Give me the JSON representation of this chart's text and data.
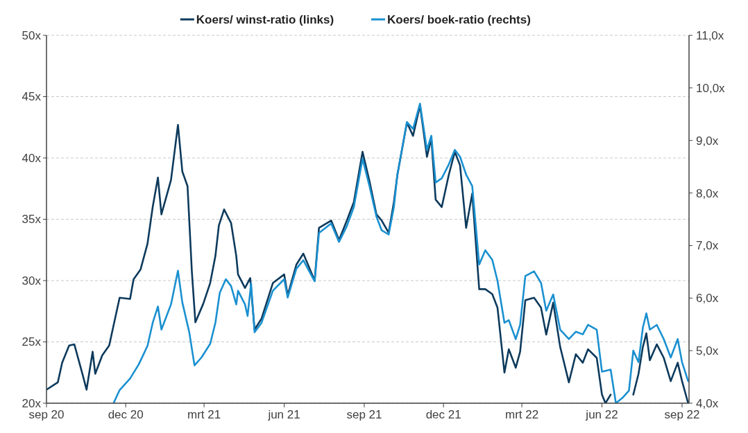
{
  "chart_data": {
    "type": "line",
    "xlim": [
      "2020-09-01",
      "2022-09-09"
    ],
    "xticks": [
      {
        "value": "2020-09-01",
        "label": "sep 20"
      },
      {
        "value": "2020-12-01",
        "label": "dec 20"
      },
      {
        "value": "2021-03-01",
        "label": "mrt 21"
      },
      {
        "value": "2021-06-01",
        "label": "jun 21"
      },
      {
        "value": "2021-09-01",
        "label": "sep 21"
      },
      {
        "value": "2021-12-01",
        "label": "dec 21"
      },
      {
        "value": "2022-03-01",
        "label": "mrt 22"
      },
      {
        "value": "2022-06-01",
        "label": "jun 22"
      },
      {
        "value": "2022-09-01",
        "label": "sep 22"
      }
    ],
    "ylim": [
      20,
      50
    ],
    "yticks": [
      {
        "value": 20,
        "label": "20x"
      },
      {
        "value": 25,
        "label": "25x"
      },
      {
        "value": 30,
        "label": "30x"
      },
      {
        "value": 35,
        "label": "35x"
      },
      {
        "value": 40,
        "label": "40x"
      },
      {
        "value": 45,
        "label": "45x"
      },
      {
        "value": 50,
        "label": "50x"
      }
    ],
    "y2lim": [
      4,
      11
    ],
    "y2ticks": [
      {
        "value": 4,
        "label": "4,0x"
      },
      {
        "value": 5,
        "label": "5,0x"
      },
      {
        "value": 6,
        "label": "6,0x"
      },
      {
        "value": 7,
        "label": "7,0x"
      },
      {
        "value": 8,
        "label": "8,0x"
      },
      {
        "value": 9,
        "label": "9,0x"
      },
      {
        "value": 10,
        "label": "10,0x"
      },
      {
        "value": 11,
        "label": "11,0x"
      }
    ],
    "grid": "y",
    "legend": "top",
    "series": [
      {
        "name": "Koers/ winst-ratio (links)",
        "color": "#0d3a5c",
        "x": [
          "2020-09-01",
          "2020-09-14",
          "2020-09-19",
          "2020-09-27",
          "2020-10-03",
          "2020-10-13",
          "2020-10-17",
          "2020-10-24",
          "2020-10-27",
          "2020-11-04",
          "2020-11-12",
          "2020-11-20",
          "2020-11-24",
          "2020-12-06",
          "2020-12-10",
          "2020-12-18",
          "2020-12-26",
          "2021-01-01",
          "2021-01-07",
          "2021-01-11",
          "2021-01-22",
          "2021-01-30",
          "2021-02-04",
          "2021-02-10",
          "2021-02-15",
          "2021-02-19",
          "2021-02-28",
          "2021-03-08",
          "2021-03-14",
          "2021-03-18",
          "2021-03-24",
          "2021-04-01",
          "2021-04-07",
          "2021-04-09",
          "2021-04-17",
          "2021-04-23",
          "2021-04-28",
          "2021-05-06",
          "2021-05-19",
          "2021-06-01",
          "2021-06-05",
          "2021-06-15",
          "2021-06-23",
          "2021-07-06",
          "2021-07-11",
          "2021-07-25",
          "2021-08-03",
          "2021-08-12",
          "2021-08-20",
          "2021-08-30",
          "2021-09-07",
          "2021-09-15",
          "2021-09-21",
          "2021-09-29",
          "2021-10-05",
          "2021-10-09",
          "2021-10-20",
          "2021-10-27",
          "2021-11-04",
          "2021-11-12",
          "2021-11-17",
          "2021-11-22",
          "2021-11-29",
          "2021-12-07",
          "2021-12-14",
          "2021-12-20",
          "2021-12-27",
          "2022-01-03",
          "2022-01-11",
          "2022-01-18",
          "2022-01-26",
          "2022-02-01",
          "2022-02-09",
          "2022-02-14",
          "2022-02-22",
          "2022-02-27",
          "2022-03-05",
          "2022-03-15",
          "2022-03-23",
          "2022-03-29",
          "2022-04-06",
          "2022-04-14",
          "2022-04-24",
          "2022-05-02",
          "2022-05-10",
          "2022-05-16",
          "2022-05-26",
          "2022-06-01",
          "2022-06-05",
          "2022-06-11",
          "2022-06-17",
          "2022-07-07",
          "2022-07-13",
          "2022-07-18",
          "2022-07-22",
          "2022-07-26",
          "2022-08-03",
          "2022-08-11",
          "2022-08-19",
          "2022-08-27",
          "2022-09-01",
          "2022-09-08"
        ],
        "values": [
          21.1,
          21.7,
          23.3,
          24.7,
          24.8,
          22.2,
          21.1,
          24.2,
          22.4,
          23.9,
          24.7,
          27.3,
          28.6,
          28.5,
          30.1,
          30.9,
          33.0,
          36.0,
          38.4,
          35.4,
          38.2,
          42.7,
          38.9,
          37.7,
          30.7,
          26.6,
          28.1,
          29.8,
          32.0,
          34.5,
          35.8,
          34.7,
          32.0,
          30.5,
          29.4,
          30.2,
          26.0,
          26.9,
          29.8,
          30.5,
          28.8,
          31.3,
          32.2,
          30.0,
          34.3,
          34.9,
          33.3,
          34.9,
          36.4,
          40.5,
          38.1,
          35.4,
          34.9,
          33.9,
          36.4,
          38.6,
          42.9,
          41.8,
          44.3,
          40.1,
          41.6,
          36.6,
          36.0,
          38.6,
          40.5,
          39.4,
          34.3,
          37.1,
          29.3,
          29.3,
          28.9,
          27.8,
          22.5,
          24.4,
          22.9,
          24.2,
          28.4,
          28.6,
          27.8,
          25.6,
          28.2,
          24.6,
          21.7,
          24.0,
          23.3,
          24.4,
          23.7,
          20.7,
          20.0,
          20.7,
          null,
          20.7,
          22.4,
          24.6,
          25.7,
          23.5,
          24.8,
          23.7,
          21.8,
          23.3,
          21.8,
          20.0
        ]
      },
      {
        "name": "Koers/ boek-ratio (rechts)",
        "color": "#1a90d0",
        "axis": "y2",
        "x": [
          "2020-11-17",
          "2020-11-24",
          "2020-12-06",
          "2020-12-16",
          "2020-12-26",
          "2021-01-01",
          "2021-01-07",
          "2021-01-11",
          "2021-01-22",
          "2021-01-30",
          "2021-02-04",
          "2021-02-12",
          "2021-02-18",
          "2021-02-26",
          "2021-03-08",
          "2021-03-14",
          "2021-03-19",
          "2021-03-26",
          "2021-04-01",
          "2021-04-07",
          "2021-04-09",
          "2021-04-17",
          "2021-04-20",
          "2021-04-24",
          "2021-04-28",
          "2021-05-06",
          "2021-05-19",
          "2021-06-01",
          "2021-06-05",
          "2021-06-15",
          "2021-06-23",
          "2021-07-06",
          "2021-07-11",
          "2021-07-25",
          "2021-08-03",
          "2021-08-12",
          "2021-08-20",
          "2021-08-30",
          "2021-09-07",
          "2021-09-15",
          "2021-09-21",
          "2021-09-29",
          "2021-10-05",
          "2021-10-09",
          "2021-10-20",
          "2021-10-27",
          "2021-11-04",
          "2021-11-12",
          "2021-11-17",
          "2021-11-22",
          "2021-11-29",
          "2021-12-07",
          "2021-12-14",
          "2021-12-20",
          "2021-12-27",
          "2022-01-03",
          "2022-01-11",
          "2022-01-18",
          "2022-01-26",
          "2022-02-01",
          "2022-02-09",
          "2022-02-14",
          "2022-02-22",
          "2022-02-27",
          "2022-03-05",
          "2022-03-15",
          "2022-03-23",
          "2022-03-29",
          "2022-04-06",
          "2022-04-14",
          "2022-04-24",
          "2022-05-02",
          "2022-05-10",
          "2022-05-16",
          "2022-05-26",
          "2022-06-01",
          "2022-06-11",
          "2022-06-17",
          "2022-06-25",
          "2022-07-02",
          "2022-07-07",
          "2022-07-13",
          "2022-07-18",
          "2022-07-22",
          "2022-07-26",
          "2022-08-03",
          "2022-08-11",
          "2022-08-19",
          "2022-08-27",
          "2022-09-01",
          "2022-09-08"
        ],
        "values": [
          4.0,
          4.25,
          4.47,
          4.74,
          5.09,
          5.53,
          5.84,
          5.4,
          5.88,
          6.52,
          5.92,
          5.35,
          4.72,
          4.87,
          5.13,
          5.53,
          6.1,
          6.36,
          6.23,
          5.88,
          6.14,
          5.88,
          5.66,
          6.28,
          5.35,
          5.53,
          6.14,
          6.36,
          6.01,
          6.56,
          6.72,
          6.32,
          7.24,
          7.42,
          7.07,
          7.37,
          7.73,
          8.65,
          8.13,
          7.55,
          7.29,
          7.21,
          7.73,
          8.35,
          9.35,
          9.22,
          9.7,
          8.82,
          9.09,
          8.2,
          8.28,
          8.54,
          8.82,
          8.69,
          8.35,
          8.13,
          6.64,
          6.91,
          6.73,
          6.33,
          5.53,
          5.58,
          5.22,
          5.49,
          6.42,
          6.51,
          6.29,
          5.76,
          6.07,
          5.4,
          5.22,
          5.36,
          5.31,
          5.49,
          5.4,
          4.6,
          4.64,
          4.0,
          4.11,
          4.24,
          5.0,
          4.78,
          5.44,
          5.71,
          5.4,
          5.49,
          5.22,
          4.87,
          5.22,
          4.78,
          4.42
        ]
      }
    ]
  }
}
